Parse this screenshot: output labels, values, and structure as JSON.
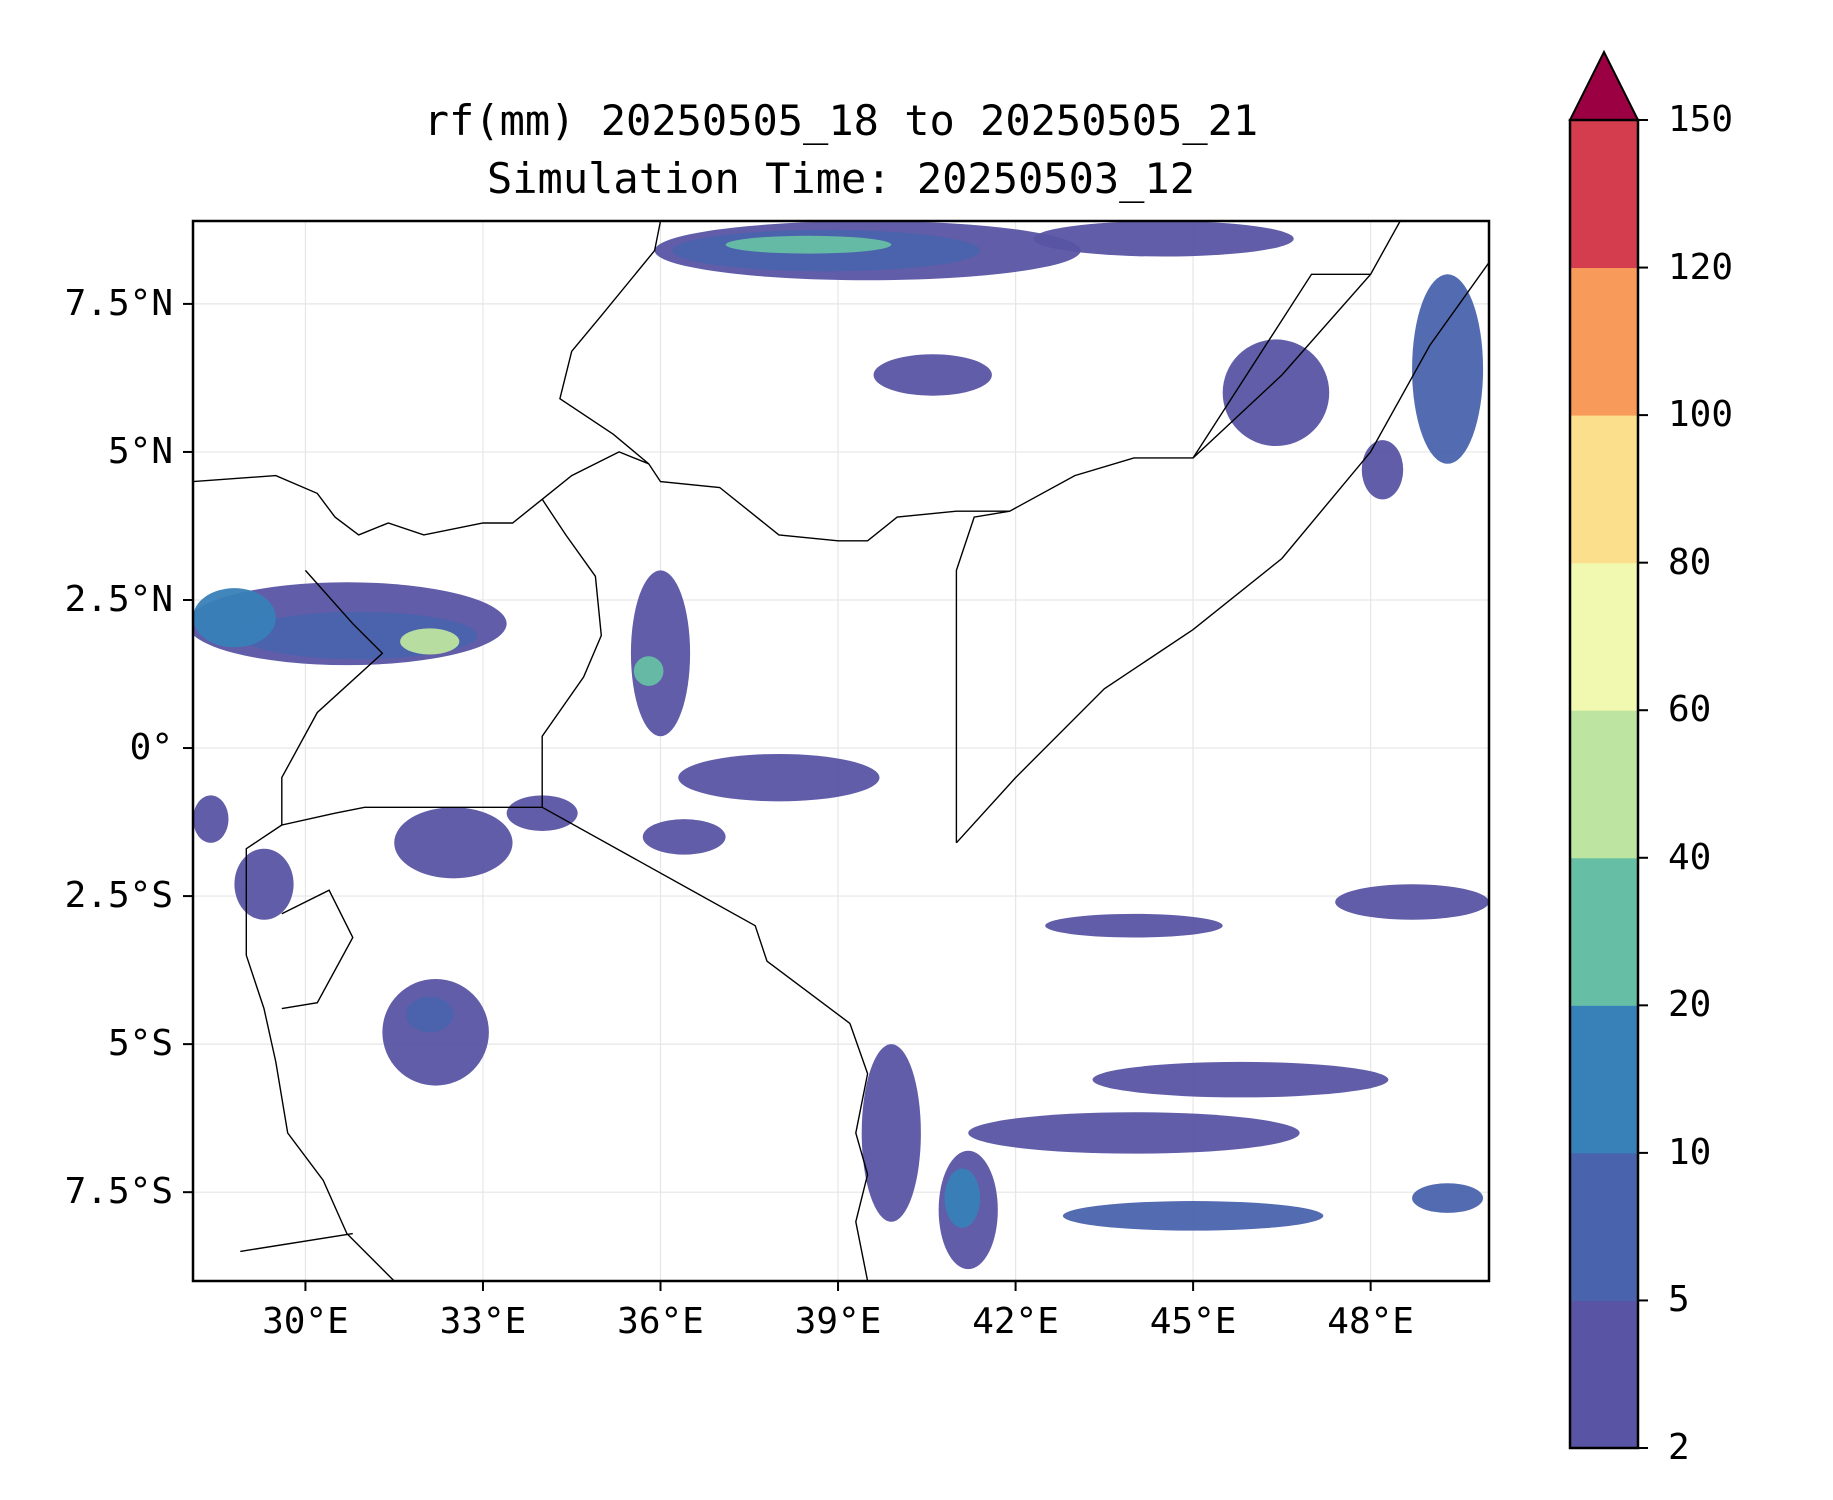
{
  "title": {
    "line1": "rf(mm) 20250505_18 to 20250505_21",
    "line2": "Simulation Time: 20250503_12"
  },
  "map": {
    "lon_range": [
      28.1,
      50.0
    ],
    "lat_range": [
      -9.0,
      8.9
    ],
    "lat_ticks": [
      {
        "value": 7.5,
        "label": "7.5°N"
      },
      {
        "value": 5,
        "label": "5°N"
      },
      {
        "value": 2.5,
        "label": "2.5°N"
      },
      {
        "value": 0,
        "label": "0°"
      },
      {
        "value": -2.5,
        "label": "2.5°S"
      },
      {
        "value": -5,
        "label": "5°S"
      },
      {
        "value": -7.5,
        "label": "7.5°S"
      }
    ],
    "lon_ticks": [
      {
        "value": 30,
        "label": "30°E"
      },
      {
        "value": 33,
        "label": "33°E"
      },
      {
        "value": 36,
        "label": "36°E"
      },
      {
        "value": 39,
        "label": "39°E"
      },
      {
        "value": 42,
        "label": "42°E"
      },
      {
        "value": 45,
        "label": "45°E"
      },
      {
        "value": 48,
        "label": "48°E"
      }
    ],
    "gridlines": true,
    "borders": [
      [
        [
          28.1,
          4.5
        ],
        [
          29.5,
          4.6
        ],
        [
          30.2,
          4.3
        ],
        [
          30.5,
          3.9
        ],
        [
          30.9,
          3.6
        ],
        [
          31.4,
          3.8
        ],
        [
          32.0,
          3.6
        ],
        [
          33.0,
          3.8
        ],
        [
          33.5,
          3.8
        ],
        [
          34.0,
          4.2
        ],
        [
          34.5,
          4.6
        ],
        [
          35.3,
          5.0
        ],
        [
          35.8,
          4.8
        ],
        [
          36.0,
          4.5
        ],
        [
          37.0,
          4.4
        ],
        [
          38.0,
          3.6
        ],
        [
          39.0,
          3.5
        ],
        [
          39.5,
          3.5
        ],
        [
          40.0,
          3.9
        ],
        [
          41.0,
          4.0
        ],
        [
          41.9,
          4.0
        ]
      ],
      [
        [
          34.0,
          4.2
        ],
        [
          34.4,
          3.6
        ],
        [
          34.9,
          2.9
        ],
        [
          35.0,
          1.9
        ],
        [
          34.7,
          1.2
        ],
        [
          34.0,
          0.2
        ],
        [
          34.0,
          -1.0
        ]
      ],
      [
        [
          30.0,
          3.0
        ],
        [
          30.8,
          2.1
        ],
        [
          31.3,
          1.6
        ],
        [
          30.2,
          0.6
        ],
        [
          29.6,
          -0.5
        ],
        [
          29.6,
          -1.3
        ],
        [
          30.5,
          -1.1
        ],
        [
          31.0,
          -1.0
        ],
        [
          34.0,
          -1.0
        ]
      ],
      [
        [
          34.0,
          -1.0
        ],
        [
          37.6,
          -3.0
        ],
        [
          37.8,
          -3.6
        ],
        [
          39.2,
          -4.65
        ]
      ],
      [
        [
          41.0,
          -1.6
        ],
        [
          41.0,
          3.0
        ],
        [
          41.3,
          3.9
        ],
        [
          41.9,
          4.0
        ],
        [
          43.0,
          4.6
        ],
        [
          44.0,
          4.9
        ],
        [
          45.0,
          4.9
        ],
        [
          46.5,
          6.3
        ],
        [
          48.0,
          8.0
        ],
        [
          48.5,
          8.9
        ]
      ],
      [
        [
          45.0,
          4.9
        ],
        [
          47.0,
          8.0
        ],
        [
          48.0,
          8.0
        ]
      ],
      [
        [
          36.0,
          8.9
        ],
        [
          35.9,
          8.4
        ],
        [
          35.0,
          7.3
        ],
        [
          34.5,
          6.7
        ],
        [
          34.3,
          5.9
        ],
        [
          35.2,
          5.3
        ],
        [
          35.8,
          4.8
        ]
      ],
      [
        [
          29.6,
          -1.3
        ],
        [
          29.0,
          -1.7
        ],
        [
          29.0,
          -2.7
        ],
        [
          29.0,
          -3.5
        ],
        [
          29.3,
          -4.4
        ],
        [
          29.5,
          -5.3
        ],
        [
          29.7,
          -6.5
        ],
        [
          30.3,
          -7.3
        ],
        [
          30.7,
          -8.2
        ],
        [
          31.5,
          -9.0
        ]
      ],
      [
        [
          29.6,
          -2.8
        ],
        [
          30.4,
          -2.4
        ],
        [
          30.8,
          -3.2
        ],
        [
          30.2,
          -4.3
        ],
        [
          29.6,
          -4.4
        ]
      ],
      [
        [
          28.9,
          -8.5
        ],
        [
          30.8,
          -8.2
        ]
      ],
      [
        [
          39.2,
          -4.65
        ],
        [
          39.5,
          -5.5
        ],
        [
          39.3,
          -6.5
        ],
        [
          39.5,
          -7.2
        ],
        [
          39.3,
          -8.0
        ],
        [
          39.5,
          -9.0
        ]
      ],
      [
        [
          41.0,
          -1.6
        ],
        [
          42.0,
          -0.5
        ],
        [
          43.5,
          1.0
        ],
        [
          45.0,
          2.0
        ],
        [
          46.5,
          3.2
        ],
        [
          48.0,
          5.0
        ],
        [
          49.0,
          6.8
        ],
        [
          50.0,
          8.2
        ]
      ]
    ]
  },
  "chart_data": {
    "type": "heatmap",
    "title": "rf(mm) 20250505_18 to 20250505_21",
    "subtitle": "Simulation Time: 20250503_12",
    "xlim": [
      28.1,
      50.0
    ],
    "ylim": [
      -9.0,
      8.9
    ],
    "grid": true,
    "levels": [
      2,
      5,
      10,
      20,
      40,
      60,
      80,
      100,
      120,
      150
    ],
    "colors": [
      "#5954a4",
      "#4a63ad",
      "#3880b8",
      "#66bfa4",
      "#bde4a0",
      "#f1f8b0",
      "#fbdf8c",
      "#f89b5a",
      "#d43d4e",
      "#9b0042"
    ],
    "extend": "max",
    "rain_cells": [
      {
        "lon": 39.5,
        "lat": 8.4,
        "rx": 3.6,
        "ry": 0.5,
        "level": 0
      },
      {
        "lon": 38.8,
        "lat": 8.4,
        "rx": 2.6,
        "ry": 0.35,
        "level": 1
      },
      {
        "lon": 38.5,
        "lat": 8.5,
        "rx": 1.4,
        "ry": 0.15,
        "level": 3
      },
      {
        "lon": 44.5,
        "lat": 8.6,
        "rx": 2.2,
        "ry": 0.3,
        "level": 0
      },
      {
        "lon": 40.6,
        "lat": 6.3,
        "rx": 1.0,
        "ry": 0.35,
        "level": 0
      },
      {
        "lon": 46.4,
        "lat": 6.0,
        "rx": 0.9,
        "ry": 0.9,
        "level": 0
      },
      {
        "lon": 49.3,
        "lat": 6.4,
        "rx": 0.6,
        "ry": 1.6,
        "level": 1
      },
      {
        "lon": 48.2,
        "lat": 4.7,
        "rx": 0.35,
        "ry": 0.5,
        "level": 0
      },
      {
        "lon": 30.7,
        "lat": 2.1,
        "rx": 2.7,
        "ry": 0.7,
        "level": 0
      },
      {
        "lon": 30.9,
        "lat": 1.9,
        "rx": 2.0,
        "ry": 0.4,
        "level": 1
      },
      {
        "lon": 28.8,
        "lat": 2.2,
        "rx": 0.7,
        "ry": 0.5,
        "level": 2
      },
      {
        "lon": 32.1,
        "lat": 1.8,
        "rx": 0.5,
        "ry": 0.22,
        "level": 4
      },
      {
        "lon": 36.0,
        "lat": 1.6,
        "rx": 0.5,
        "ry": 1.4,
        "level": 0
      },
      {
        "lon": 35.8,
        "lat": 1.3,
        "rx": 0.25,
        "ry": 0.25,
        "level": 3
      },
      {
        "lon": 38.0,
        "lat": -0.5,
        "rx": 1.7,
        "ry": 0.4,
        "level": 0
      },
      {
        "lon": 36.4,
        "lat": -1.5,
        "rx": 0.7,
        "ry": 0.3,
        "level": 0
      },
      {
        "lon": 32.5,
        "lat": -1.6,
        "rx": 1.0,
        "ry": 0.6,
        "level": 0
      },
      {
        "lon": 34.0,
        "lat": -1.1,
        "rx": 0.6,
        "ry": 0.3,
        "level": 0
      },
      {
        "lon": 32.2,
        "lat": -4.8,
        "rx": 0.9,
        "ry": 0.9,
        "level": 0
      },
      {
        "lon": 32.1,
        "lat": -4.5,
        "rx": 0.4,
        "ry": 0.3,
        "level": 1
      },
      {
        "lon": 29.3,
        "lat": -2.3,
        "rx": 0.5,
        "ry": 0.6,
        "level": 0
      },
      {
        "lon": 28.4,
        "lat": -1.2,
        "rx": 0.3,
        "ry": 0.4,
        "level": 0
      },
      {
        "lon": 39.9,
        "lat": -6.5,
        "rx": 0.5,
        "ry": 1.5,
        "level": 0
      },
      {
        "lon": 41.2,
        "lat": -7.8,
        "rx": 0.5,
        "ry": 1.0,
        "level": 0
      },
      {
        "lon": 41.1,
        "lat": -7.6,
        "rx": 0.3,
        "ry": 0.5,
        "level": 2
      },
      {
        "lon": 44.0,
        "lat": -6.5,
        "rx": 2.8,
        "ry": 0.35,
        "level": 0
      },
      {
        "lon": 45.8,
        "lat": -5.6,
        "rx": 2.5,
        "ry": 0.3,
        "level": 0
      },
      {
        "lon": 45.0,
        "lat": -7.9,
        "rx": 2.2,
        "ry": 0.25,
        "level": 1
      },
      {
        "lon": 48.7,
        "lat": -2.6,
        "rx": 1.3,
        "ry": 0.3,
        "level": 0
      },
      {
        "lon": 49.3,
        "lat": -7.6,
        "rx": 0.6,
        "ry": 0.25,
        "level": 1
      },
      {
        "lon": 44.0,
        "lat": -3.0,
        "rx": 1.5,
        "ry": 0.2,
        "level": 0
      }
    ]
  },
  "colorbar": {
    "tick_labels": [
      "2",
      "5",
      "10",
      "20",
      "40",
      "60",
      "80",
      "100",
      "120",
      "150"
    ]
  }
}
